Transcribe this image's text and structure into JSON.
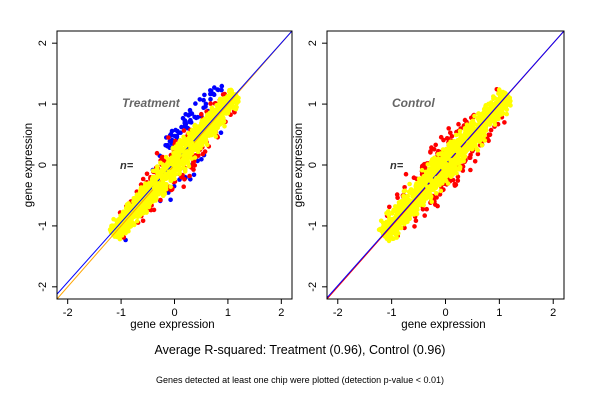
{
  "captions": {
    "main": "Average R-squared: Treatment (0.96), Control (0.96)",
    "sub": "Genes detected at least one chip were plotted (detection p-value < 0.01)"
  },
  "colors": {
    "up": "#0000ff",
    "mid": "#ff0000",
    "base": "#ffff00",
    "line_a": "#ffa500",
    "line_b": "#0000ff",
    "line_c": "#ff0000"
  },
  "chart_data": [
    {
      "type": "scatter",
      "title": "Treatment",
      "inner_label": "n=",
      "xlabel": "gene expression",
      "ylabel": "gene expression",
      "xlim": [
        -2.2,
        2.2
      ],
      "ylim": [
        -2.2,
        2.2
      ],
      "xticks": [
        -2,
        -1,
        0,
        1,
        2
      ],
      "yticks": [
        -2,
        -1,
        0,
        1,
        2
      ],
      "grid": false,
      "cloud": {
        "center": [
          0,
          0
        ],
        "extent": [
          -1.15,
          1.15
        ],
        "spread": 0.14
      },
      "lines": [
        {
          "color": "orange",
          "from": [
            -2.2,
            -2.2
          ],
          "to": [
            2.2,
            2.2
          ]
        },
        {
          "color": "blue",
          "from": [
            -2.2,
            -2.12
          ],
          "to": [
            2.2,
            2.2
          ]
        }
      ]
    },
    {
      "type": "scatter",
      "title": "Control",
      "inner_label": "n=",
      "xlabel": "gene expression",
      "ylabel": "gene expression",
      "xlim": [
        -2.2,
        2.2
      ],
      "ylim": [
        -2.2,
        2.2
      ],
      "xticks": [
        -2,
        -1,
        0,
        1,
        2
      ],
      "yticks": [
        -2,
        -1,
        0,
        1,
        2
      ],
      "grid": false,
      "cloud": {
        "center": [
          0,
          0
        ],
        "extent": [
          -1.15,
          1.15
        ],
        "spread": 0.16
      },
      "lines": [
        {
          "color": "red",
          "from": [
            -2.2,
            -2.2
          ],
          "to": [
            2.2,
            2.2
          ]
        },
        {
          "color": "blue",
          "from": [
            -2.2,
            -2.18
          ],
          "to": [
            2.2,
            2.2
          ]
        }
      ]
    }
  ]
}
